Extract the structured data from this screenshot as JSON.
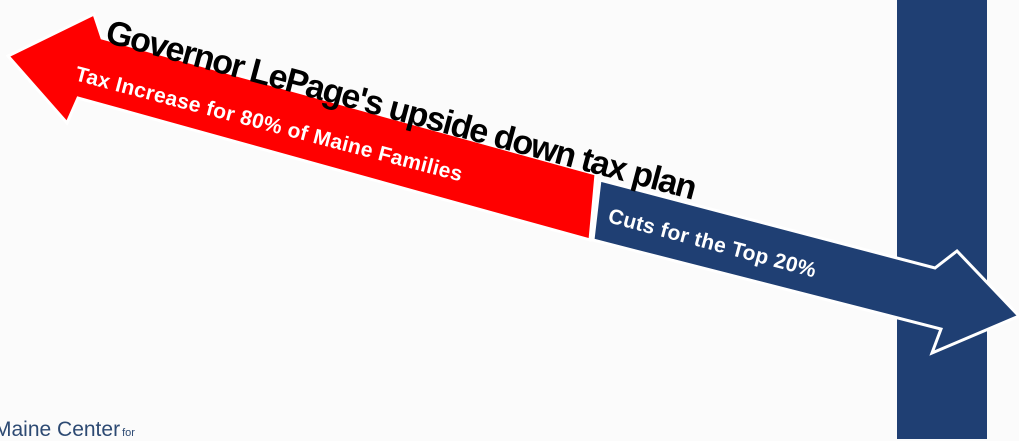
{
  "title": "Governor LePage's upside down tax plan",
  "left_arrow": {
    "label": "Tax Increase for 80% of Maine Families",
    "color": "#ff0000"
  },
  "right_arrow": {
    "label": "Cuts for the Top 20%",
    "color": "#1f3f73"
  },
  "vertical_bar_color": "#1f3f73",
  "footer_logo": {
    "text": "Maine Center",
    "small": "for"
  }
}
